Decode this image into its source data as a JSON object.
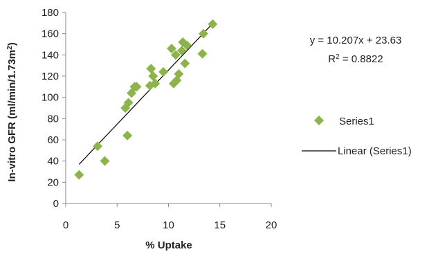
{
  "chart_data": {
    "type": "scatter",
    "xlabel": "% Uptake",
    "ylabel_main": "In-vitro GFR (ml/min/1.73m",
    "ylabel_sup": "2",
    "ylabel_close": ")",
    "xlim": [
      0,
      20
    ],
    "ylim": [
      0,
      180
    ],
    "xticks": [
      0,
      5,
      10,
      15,
      20
    ],
    "yticks": [
      0,
      20,
      40,
      60,
      80,
      100,
      120,
      140,
      160,
      180
    ],
    "grid": false,
    "legend_position": "right",
    "series": [
      {
        "name": "Series1",
        "color": "#8db44b",
        "marker": "diamond",
        "points": [
          [
            1.3,
            27
          ],
          [
            3.1,
            54
          ],
          [
            3.8,
            40
          ],
          [
            5.8,
            90
          ],
          [
            6.0,
            64
          ],
          [
            6.1,
            95
          ],
          [
            6.4,
            104
          ],
          [
            6.7,
            110
          ],
          [
            6.9,
            110
          ],
          [
            8.2,
            111
          ],
          [
            8.3,
            127
          ],
          [
            8.5,
            120
          ],
          [
            8.7,
            113
          ],
          [
            9.5,
            124
          ],
          [
            10.3,
            146
          ],
          [
            10.5,
            113
          ],
          [
            10.7,
            140
          ],
          [
            10.8,
            116
          ],
          [
            11.0,
            122
          ],
          [
            11.3,
            144
          ],
          [
            11.4,
            152
          ],
          [
            11.6,
            132
          ],
          [
            11.8,
            149
          ],
          [
            13.3,
            141
          ],
          [
            13.4,
            160
          ],
          [
            14.3,
            169
          ]
        ]
      }
    ],
    "trendline": {
      "name": "Linear (Series1)",
      "color": "#000000",
      "slope": 10.207,
      "intercept": 23.63,
      "x_range": [
        1.3,
        14.3
      ]
    },
    "equation_text": "y = 10.207x + 23.63",
    "r2_prefix": "R",
    "r2_sup": "2",
    "r2_value": " = 0.8822"
  }
}
